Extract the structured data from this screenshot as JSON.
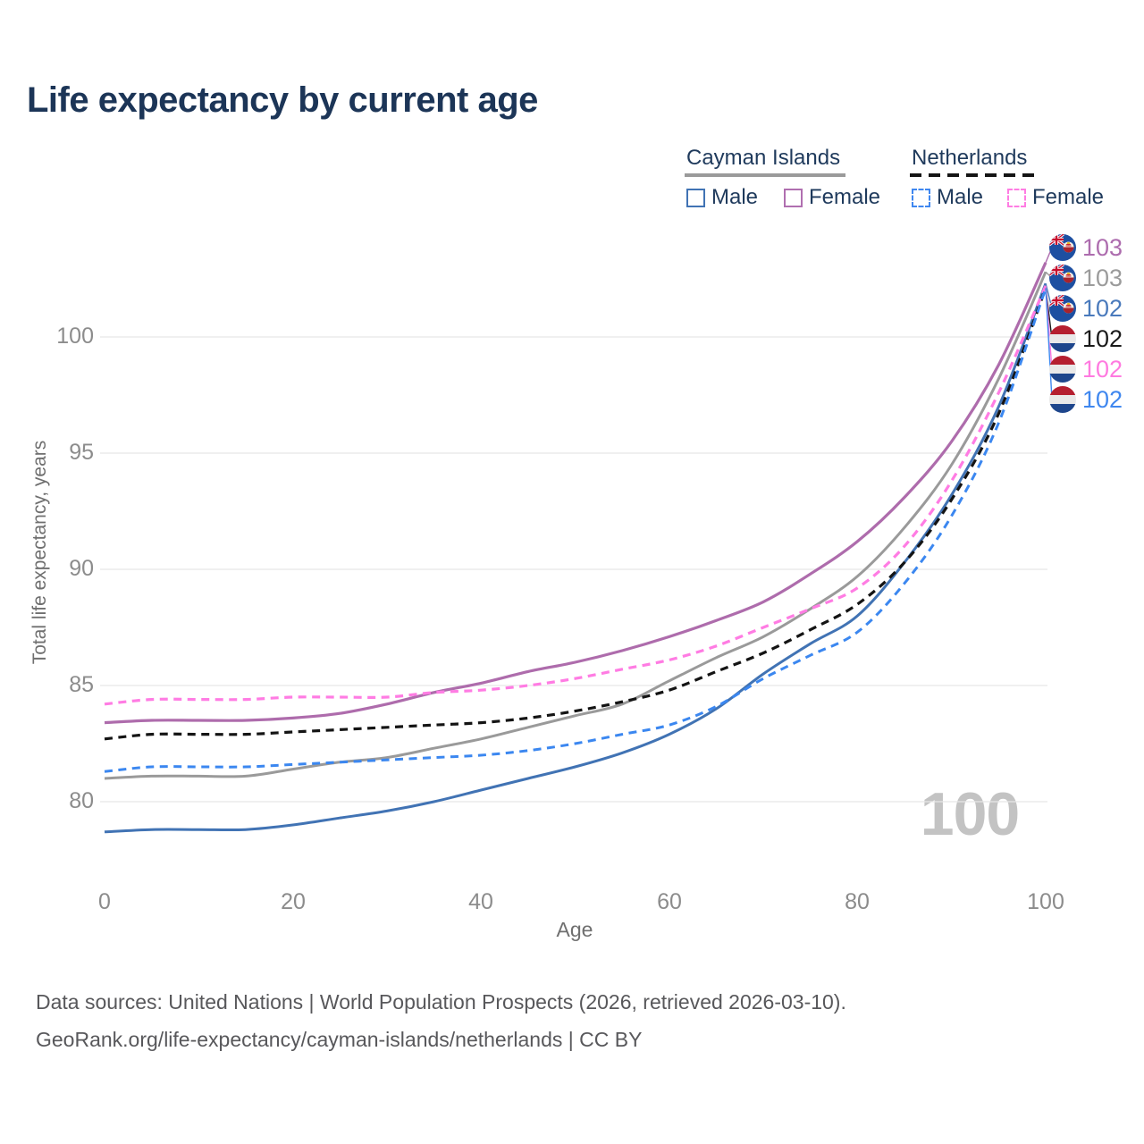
{
  "page": {
    "title": "Life expectancy by current age"
  },
  "legend": {
    "cayman": {
      "title": "Cayman Islands",
      "male": "Male",
      "female": "Female"
    },
    "netherlands": {
      "title": "Netherlands",
      "male": "Male",
      "female": "Female"
    }
  },
  "axes": {
    "y_title": "Total life expectancy, years",
    "x_title": "Age",
    "y_ticks": [
      100,
      95,
      90,
      85,
      80
    ],
    "x_ticks": [
      0,
      20,
      40,
      60,
      80,
      100
    ]
  },
  "watermark": "100",
  "end_labels": [
    {
      "flag": "cayman-islands",
      "value": "103",
      "color": "#ad6cae",
      "series": "cayman_female"
    },
    {
      "flag": "cayman-islands",
      "value": "103",
      "color": "#9b9b9b",
      "series": "cayman_total"
    },
    {
      "flag": "cayman-islands",
      "value": "102",
      "color": "#4a7abc",
      "series": "cayman_male"
    },
    {
      "flag": "netherlands",
      "value": "102",
      "color": "#1a1a1a",
      "series": "netherlands_total"
    },
    {
      "flag": "netherlands",
      "value": "102",
      "color": "#ff7ae0",
      "series": "netherlands_female"
    },
    {
      "flag": "netherlands",
      "value": "102",
      "color": "#3f87ef",
      "series": "netherlands_male"
    }
  ],
  "footer": {
    "line1": "Data sources: United Nations | World Population Prospects (2026, retrieved 2026-03-10).",
    "line2": "GeoRank.org/life-expectancy/cayman-islands/netherlands | CC BY"
  },
  "chart_data": {
    "type": "line",
    "title": "Life expectancy by current age",
    "xlabel": "Age",
    "ylabel": "Total life expectancy, years",
    "xlim": [
      0,
      100
    ],
    "ylim": [
      76.5,
      104
    ],
    "grid": "horizontal",
    "legend_position": "top-right",
    "x": [
      0,
      5,
      10,
      15,
      20,
      25,
      30,
      35,
      40,
      45,
      50,
      55,
      60,
      65,
      70,
      75,
      80,
      85,
      90,
      95,
      100
    ],
    "series": [
      {
        "id": "cayman_female",
        "name": "Cayman Islands Female",
        "color": "#ae6cac",
        "dash": false,
        "width": 3.2,
        "values": [
          83.4,
          83.5,
          83.5,
          83.5,
          83.6,
          83.8,
          84.2,
          84.7,
          85.1,
          85.6,
          86.0,
          86.5,
          87.1,
          87.8,
          88.6,
          89.8,
          91.2,
          93.1,
          95.5,
          98.8,
          103.2
        ]
      },
      {
        "id": "cayman_total",
        "name": "Cayman Islands (both sexes)",
        "color": "#9a9a9a",
        "dash": false,
        "width": 3,
        "values": [
          81.0,
          81.1,
          81.1,
          81.1,
          81.4,
          81.7,
          81.9,
          82.3,
          82.7,
          83.2,
          83.7,
          84.2,
          85.2,
          86.2,
          87.1,
          88.3,
          89.7,
          91.8,
          94.5,
          98.2,
          102.8
        ]
      },
      {
        "id": "cayman_male",
        "name": "Cayman Islands Male",
        "color": "#4173b4",
        "dash": false,
        "width": 3,
        "values": [
          78.7,
          78.8,
          78.8,
          78.8,
          79.0,
          79.3,
          79.6,
          80.0,
          80.5,
          81.0,
          81.5,
          82.1,
          82.9,
          84.0,
          85.5,
          86.8,
          88.0,
          90.3,
          93.2,
          97.0,
          102.3
        ]
      },
      {
        "id": "netherlands_total",
        "name": "Netherlands (both sexes)",
        "color": "#141414",
        "dash": true,
        "width": 3.2,
        "values": [
          82.7,
          82.9,
          82.9,
          82.9,
          83.0,
          83.1,
          83.2,
          83.3,
          83.4,
          83.6,
          83.9,
          84.3,
          84.8,
          85.6,
          86.4,
          87.4,
          88.5,
          90.3,
          93.0,
          96.7,
          102.1
        ]
      },
      {
        "id": "netherlands_female",
        "name": "Netherlands Female",
        "color": "#ff7ce3",
        "dash": true,
        "width": 3.2,
        "values": [
          84.2,
          84.4,
          84.4,
          84.4,
          84.5,
          84.5,
          84.5,
          84.7,
          84.8,
          85.0,
          85.3,
          85.7,
          86.1,
          86.7,
          87.5,
          88.3,
          89.2,
          91.0,
          93.8,
          97.6,
          102.2
        ]
      },
      {
        "id": "netherlands_male",
        "name": "Netherlands Male",
        "color": "#3b87f0",
        "dash": true,
        "width": 3,
        "values": [
          81.3,
          81.5,
          81.5,
          81.5,
          81.6,
          81.7,
          81.8,
          81.9,
          82.0,
          82.2,
          82.5,
          82.9,
          83.3,
          84.1,
          85.3,
          86.3,
          87.3,
          89.4,
          92.3,
          96.3,
          102.1
        ]
      }
    ]
  }
}
